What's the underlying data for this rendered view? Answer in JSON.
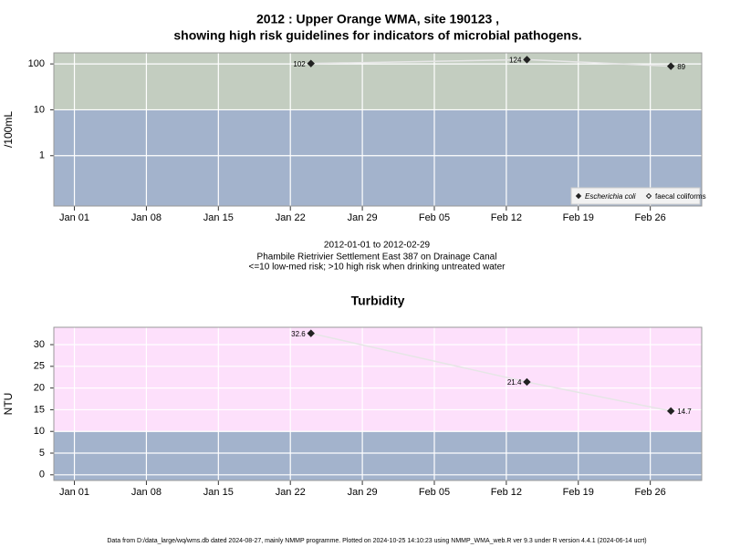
{
  "chart_data": [
    {
      "type": "line",
      "title": [
        "2012 : Upper Orange WMA, site 190123 ,",
        "showing high risk guidelines for indicators of microbial pathogens."
      ],
      "y_label": "/100mL",
      "log_scale": true,
      "grid": true,
      "x": [
        "2012-01-24",
        "2012-02-14",
        "2012-02-28"
      ],
      "xlim": [
        "2011-12-30",
        "2012-03-02"
      ],
      "xticks": [
        {
          "value": "2012-01-01",
          "label": "Jan 01"
        },
        {
          "value": "2012-01-08",
          "label": "Jan 08"
        },
        {
          "value": "2012-01-15",
          "label": "Jan 15"
        },
        {
          "value": "2012-01-22",
          "label": "Jan 22"
        },
        {
          "value": "2012-01-29",
          "label": "Jan 29"
        },
        {
          "value": "2012-02-05",
          "label": "Feb 05"
        },
        {
          "value": "2012-02-12",
          "label": "Feb 12"
        },
        {
          "value": "2012-02-19",
          "label": "Feb 19"
        },
        {
          "value": "2012-02-26",
          "label": "Feb 26"
        }
      ],
      "ylim": [
        0.08,
        174
      ],
      "yticks": [
        1,
        10,
        100
      ],
      "threshold": 10,
      "above_color": "#c3cdc0",
      "below_color": "#a3b3cc",
      "line_color": "#e6e6e6",
      "legend": "bottom-right",
      "series": [
        {
          "name": "Escherichia coli",
          "color": "#222222",
          "marker": "filled",
          "values": [
            102,
            124,
            89
          ]
        },
        {
          "name": "faecal coliforms",
          "color": "#222222",
          "marker": "open",
          "values": [
            null,
            null,
            null
          ]
        }
      ]
    },
    {
      "type": "line",
      "title": [
        "Turbidity"
      ],
      "y_label": "NTU",
      "log_scale": false,
      "grid": true,
      "x": [
        "2012-01-24",
        "2012-02-14",
        "2012-02-28"
      ],
      "xlim": [
        "2011-12-30",
        "2012-03-02"
      ],
      "xticks": [
        {
          "value": "2012-01-01",
          "label": "Jan 01"
        },
        {
          "value": "2012-01-08",
          "label": "Jan 08"
        },
        {
          "value": "2012-01-15",
          "label": "Jan 15"
        },
        {
          "value": "2012-01-22",
          "label": "Jan 22"
        },
        {
          "value": "2012-01-29",
          "label": "Jan 29"
        },
        {
          "value": "2012-02-05",
          "label": "Feb 05"
        },
        {
          "value": "2012-02-12",
          "label": "Feb 12"
        },
        {
          "value": "2012-02-19",
          "label": "Feb 19"
        },
        {
          "value": "2012-02-26",
          "label": "Feb 26"
        }
      ],
      "ylim": [
        -1.3,
        34
      ],
      "yticks": [
        0,
        5,
        10,
        15,
        20,
        25,
        30
      ],
      "threshold": 10,
      "above_color": "#fde0fb",
      "below_color": "#a3b3cc",
      "line_color": "#e6e6e6",
      "series": [
        {
          "name": "Turbidity",
          "color": "#222222",
          "marker": "filled",
          "values": [
            32.6,
            21.4,
            14.7
          ]
        }
      ]
    }
  ],
  "notes": [
    "2012-01-01 to 2012-02-29",
    "Phambile Rietrivier Settlement East 387 on Drainage Canal",
    "<=10 low-med risk; >10 high risk when drinking untreated water"
  ],
  "footer": "Data from D:/data_large/wq/wms.db dated 2024-08-27, mainly NMMP programme. Plotted on 2024-10-25 14:10:23 using NMMP_WMA_web.R ver 9.3 under R version 4.4.1 (2024-06-14 ucrt)"
}
